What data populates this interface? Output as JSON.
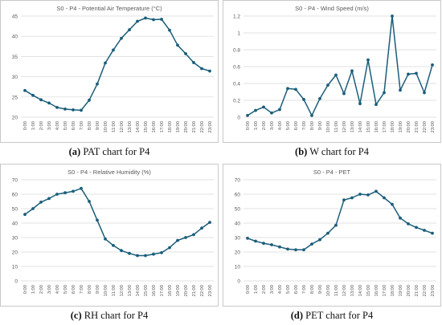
{
  "colors": {
    "line": "#1b5e7a",
    "grid": "#d9d9d9",
    "frame": "#c8c8c8",
    "text": "#595959"
  },
  "panels": [
    {
      "letter": "(a)",
      "caption": "PAT chart for P4"
    },
    {
      "letter": "(b)",
      "caption": "W chart for P4"
    },
    {
      "letter": "(c)",
      "caption": "RH chart for P4"
    },
    {
      "letter": "(d)",
      "caption": "PET chart for P4"
    }
  ],
  "chart_data": [
    {
      "type": "line",
      "title": "S0 - P4 - Potential Air Temperature (°C)",
      "xlabel": "",
      "ylabel": "",
      "categories": [
        "0:00",
        "1:00",
        "2:00",
        "3:00",
        "4:00",
        "5:00",
        "6:00",
        "7:00",
        "8:00",
        "9:00",
        "10:00",
        "11:00",
        "12:00",
        "13:00",
        "14:00",
        "15:00",
        "16:00",
        "17:00",
        "18:00",
        "19:00",
        "20:00",
        "21:00",
        "22:00",
        "23:00"
      ],
      "values": [
        26.6,
        25.4,
        24.3,
        23.5,
        22.4,
        22.0,
        21.8,
        21.7,
        24.2,
        28.2,
        33.4,
        36.6,
        39.5,
        41.6,
        43.7,
        44.5,
        44.1,
        44.2,
        41.5,
        37.8,
        35.7,
        33.5,
        32.0,
        31.4
      ],
      "yticks": [
        "20",
        "25",
        "30",
        "35",
        "40",
        "45"
      ],
      "ylim": [
        20,
        45
      ],
      "grid": true
    },
    {
      "type": "line",
      "title": "S0 - P4 - Wind Speed  (m/s)",
      "xlabel": "",
      "ylabel": "",
      "categories": [
        "0:00",
        "1:00",
        "2:00",
        "3:00",
        "4:00",
        "5:00",
        "6:00",
        "7:00",
        "8:00",
        "9:00",
        "10:00",
        "11:00",
        "12:00",
        "13:00",
        "14:00",
        "15:00",
        "16:00",
        "17:00",
        "18:00",
        "19:00",
        "20:00",
        "21:00",
        "22:00",
        "23:00"
      ],
      "values": [
        0.02,
        0.08,
        0.12,
        0.05,
        0.09,
        0.34,
        0.33,
        0.21,
        0.02,
        0.22,
        0.38,
        0.5,
        0.28,
        0.55,
        0.16,
        0.68,
        0.15,
        0.29,
        1.2,
        0.32,
        0.51,
        0.52,
        0.29,
        0.62
      ],
      "yticks": [
        "0",
        "0.2",
        "0.4",
        "0.6",
        "0.8",
        "1",
        "1.2"
      ],
      "ylim": [
        0,
        1.2
      ],
      "grid": true
    },
    {
      "type": "line",
      "title": "S0 - P4 - Relative Humidity  (%)",
      "xlabel": "",
      "ylabel": "",
      "categories": [
        "0:00",
        "1:00",
        "2:00",
        "3:00",
        "4:00",
        "5:00",
        "6:00",
        "7:00",
        "8:00",
        "9:00",
        "10:00",
        "11:00",
        "12:00",
        "13:00",
        "14:00",
        "15:00",
        "16:00",
        "17:00",
        "18:00",
        "19:00",
        "20:00",
        "21:00",
        "22:00",
        "23:00"
      ],
      "values": [
        46,
        50,
        54.5,
        57,
        60,
        61,
        62,
        64,
        55,
        42,
        29,
        24.5,
        21,
        19,
        17.5,
        17.5,
        18.5,
        19.5,
        23,
        28,
        30,
        32,
        36.5,
        40.5
      ],
      "yticks": [
        "0",
        "10",
        "20",
        "30",
        "40",
        "50",
        "60",
        "70"
      ],
      "ylim": [
        0,
        70
      ],
      "grid": true
    },
    {
      "type": "line",
      "title": "S0 - P4 - PET",
      "xlabel": "",
      "ylabel": "",
      "categories": [
        "0:00",
        "1:00",
        "2:00",
        "3:00",
        "4:00",
        "5:00",
        "6:00",
        "7:00",
        "8:00",
        "9:00",
        "10:00",
        "11:00",
        "12:00",
        "13:00",
        "14:00",
        "15:00",
        "16:00",
        "17:00",
        "18:00",
        "19:00",
        "20:00",
        "21:00",
        "22:00",
        "23:00"
      ],
      "values": [
        29.5,
        27.5,
        26,
        25,
        23.5,
        22,
        21.5,
        21.5,
        25.5,
        28.5,
        33,
        38.5,
        56,
        57.5,
        60,
        59.5,
        62,
        57.5,
        53,
        43.5,
        39.5,
        37,
        35,
        33
      ],
      "yticks": [
        "0",
        "10",
        "20",
        "30",
        "40",
        "50",
        "60",
        "70"
      ],
      "ylim": [
        0,
        70
      ],
      "grid": true
    }
  ]
}
